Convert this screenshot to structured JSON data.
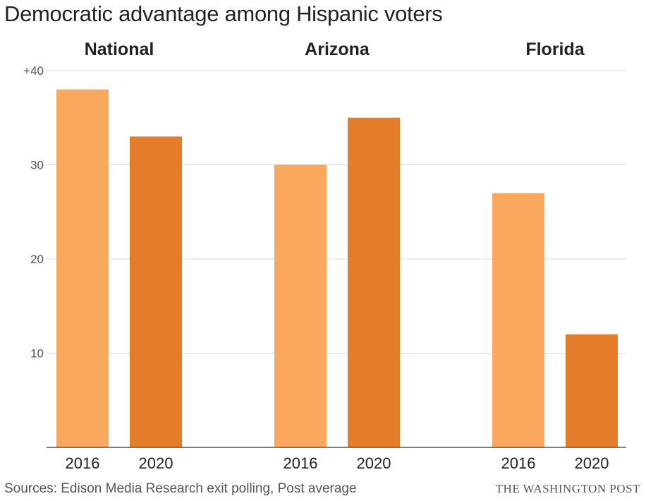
{
  "title": "Democratic advantage among Hispanic voters",
  "source": "Sources: Edison Media Research exit polling, Post average",
  "credit": "THE WASHINGTON POST",
  "colors": {
    "year_2016": "#F9A85E",
    "year_2020": "#E47C29",
    "grid": "#d9d9d9",
    "axis": "#555555",
    "text": "#222222"
  },
  "chart_data": {
    "type": "bar",
    "ylim": [
      0,
      40
    ],
    "yticks": [
      {
        "value": 10,
        "label": "10"
      },
      {
        "value": 20,
        "label": "20"
      },
      {
        "value": 30,
        "label": "30"
      },
      {
        "value": 40,
        "label": "+40"
      }
    ],
    "grid": true,
    "panels": [
      {
        "title": "National",
        "bars": [
          {
            "year": "2016",
            "value": 38
          },
          {
            "year": "2020",
            "value": 33
          }
        ]
      },
      {
        "title": "Arizona",
        "bars": [
          {
            "year": "2016",
            "value": 30
          },
          {
            "year": "2020",
            "value": 35
          }
        ]
      },
      {
        "title": "Florida",
        "bars": [
          {
            "year": "2016",
            "value": 27
          },
          {
            "year": "2020",
            "value": 12
          }
        ]
      }
    ]
  }
}
